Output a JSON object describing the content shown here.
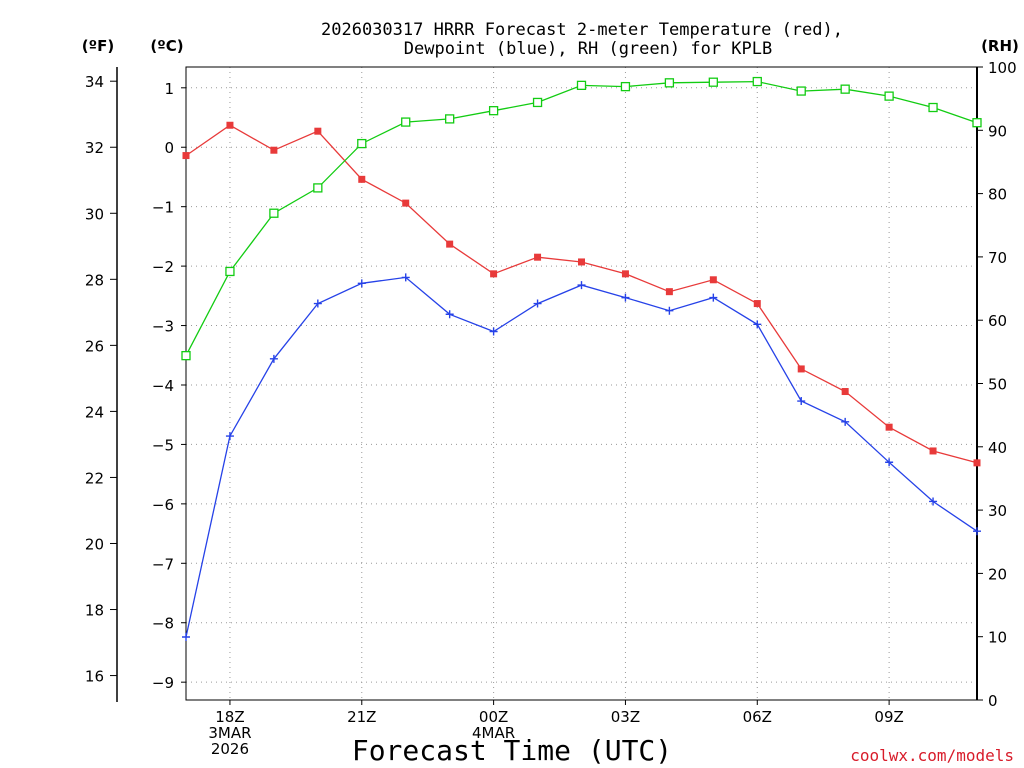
{
  "chart_data": {
    "type": "line",
    "title": {
      "line1": "2026030317 HRRR Forecast 2-meter Temperature (red),",
      "line2": "Dewpoint (blue), RH (green) for KPLB"
    },
    "xlabel": "Forecast Time (UTC)",
    "credit": "coolwx.com/models",
    "units": {
      "left_outer": "(ºF)",
      "left_inner": "(ºC)",
      "right": "(RH)"
    },
    "x": [
      0,
      1,
      2,
      3,
      4,
      5,
      6,
      7,
      8,
      9,
      10,
      11,
      12,
      13,
      14,
      15,
      16,
      17,
      18
    ],
    "xlim": [
      0,
      18
    ],
    "x_ticks": [
      {
        "x": 1,
        "lines": [
          "18Z",
          "3MAR",
          "2026"
        ]
      },
      {
        "x": 4,
        "lines": [
          "21Z"
        ]
      },
      {
        "x": 7,
        "lines": [
          "00Z",
          "4MAR"
        ]
      },
      {
        "x": 10,
        "lines": [
          "03Z"
        ]
      },
      {
        "x": 13,
        "lines": [
          "06Z"
        ]
      },
      {
        "x": 16,
        "lines": [
          "09Z"
        ]
      }
    ],
    "celsius_axis": {
      "ylim": [
        -9.3,
        1.35
      ],
      "ticks": [
        1,
        0,
        -1,
        -2,
        -3,
        -4,
        -5,
        -6,
        -7,
        -8,
        -9
      ]
    },
    "fahrenheit_axis": {
      "ticks": [
        34,
        32,
        30,
        28,
        26,
        24,
        22,
        20,
        18,
        16
      ]
    },
    "rh_axis": {
      "ylim": [
        0,
        100
      ],
      "ticks": [
        100,
        90,
        80,
        70,
        60,
        50,
        40,
        30,
        20,
        10,
        0
      ]
    },
    "series": [
      {
        "name": "2-meter Temperature",
        "unit": "C",
        "axis": "celsius",
        "color": "#e83a3a",
        "marker": "filled-square",
        "values": [
          -0.14,
          0.37,
          -0.05,
          0.27,
          -0.54,
          -0.94,
          -1.63,
          -2.13,
          -1.85,
          -1.93,
          -2.13,
          -2.43,
          -2.23,
          -2.63,
          -3.73,
          -4.11,
          -4.71,
          -5.11,
          -5.31
        ]
      },
      {
        "name": "Dewpoint",
        "unit": "C",
        "axis": "celsius",
        "color": "#2642e8",
        "marker": "plus",
        "values": [
          -8.24,
          -4.86,
          -3.56,
          -2.63,
          -2.29,
          -2.19,
          -2.81,
          -3.1,
          -2.63,
          -2.32,
          -2.53,
          -2.75,
          -2.53,
          -2.98,
          -4.27,
          -4.62,
          -5.3,
          -5.96,
          -6.46
        ]
      },
      {
        "name": "RH",
        "unit": "%",
        "axis": "rh",
        "color": "#12cc12",
        "marker": "open-square",
        "values": [
          54.4,
          67.7,
          76.9,
          80.9,
          87.9,
          91.3,
          91.8,
          93.1,
          94.4,
          97.1,
          96.9,
          97.5,
          97.6,
          97.7,
          96.2,
          96.5,
          95.4,
          93.6,
          91.2
        ]
      }
    ]
  }
}
